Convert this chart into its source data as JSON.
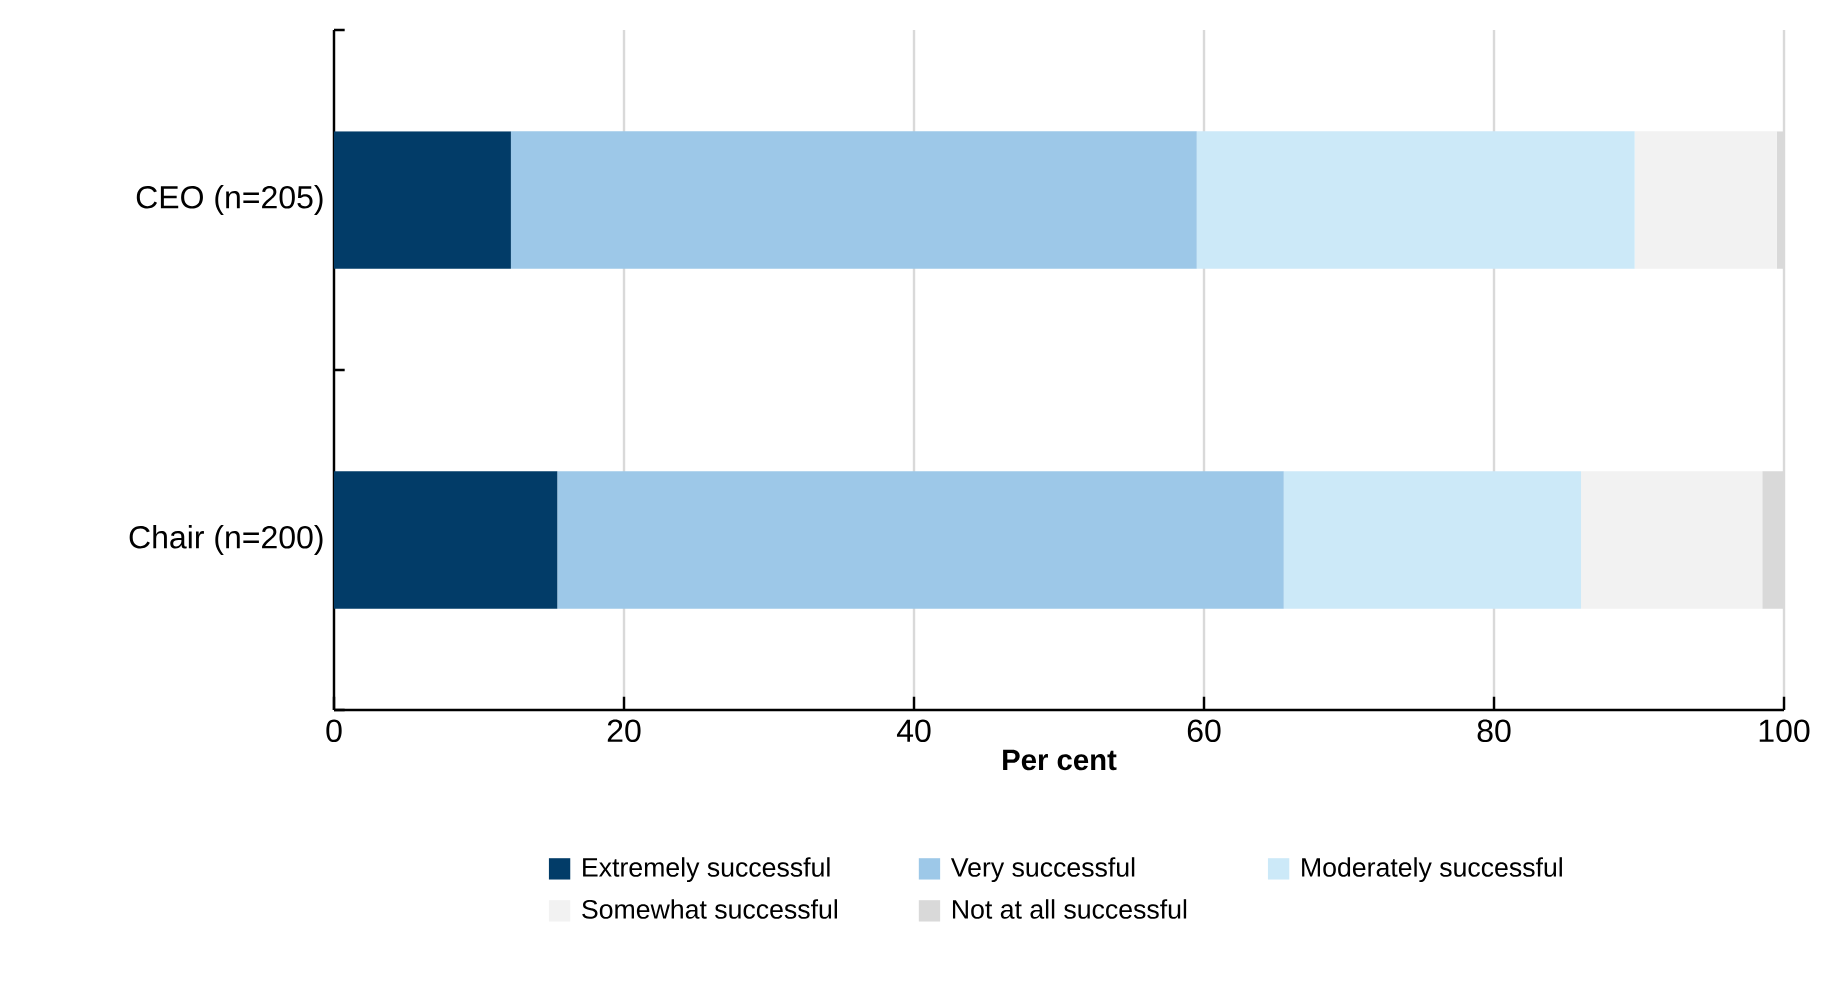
{
  "chart_data": {
    "type": "bar",
    "orientation": "horizontal",
    "stacked": true,
    "categories": [
      "CEO (n=205)",
      "Chair (n=200)"
    ],
    "xlabel": "Per cent",
    "xlim": [
      0,
      100
    ],
    "xticks": [
      0,
      20,
      40,
      60,
      80,
      100
    ],
    "grid": "x",
    "legend": "bottom",
    "series": [
      {
        "name": "Extremely successful",
        "color": "#023c68",
        "values": [
          12.2,
          15.4
        ]
      },
      {
        "name": "Very successful",
        "color": "#9dc8e8",
        "values": [
          47.3,
          50.1
        ]
      },
      {
        "name": "Moderately successful",
        "color": "#cce9f8",
        "values": [
          30.2,
          20.5
        ]
      },
      {
        "name": "Somewhat successful",
        "color": "#f2f2f2",
        "values": [
          9.8,
          12.5
        ]
      },
      {
        "name": "Not at all successful",
        "color": "#d9d9d9",
        "values": [
          0.5,
          1.5
        ]
      }
    ]
  }
}
